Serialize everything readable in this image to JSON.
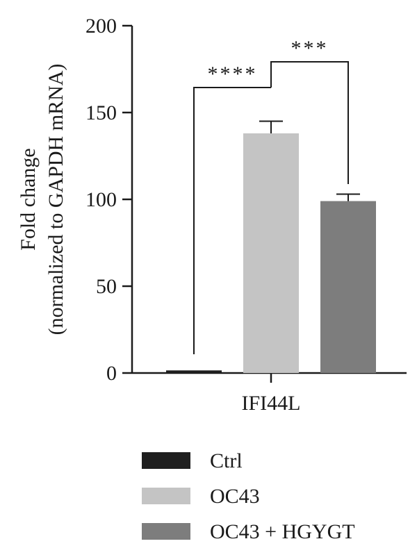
{
  "chart_data": {
    "type": "bar",
    "categories": [
      "IFI44L"
    ],
    "ylabel_line1": "Fold change",
    "ylabel_line2": "(normalized to GAPDH mRNA)",
    "ylim": [
      0,
      200
    ],
    "yticks": [
      0,
      50,
      100,
      150,
      200
    ],
    "grid": false,
    "legend_position": "bottom",
    "series": [
      {
        "name": "Ctrl",
        "values": [
          1.5
        ],
        "error": [
          0
        ],
        "color": "#1f1f1f"
      },
      {
        "name": "OC43",
        "values": [
          138
        ],
        "error": [
          7
        ],
        "color": "#c4c4c4"
      },
      {
        "name": "OC43 + HGYGT",
        "values": [
          99
        ],
        "error": [
          4
        ],
        "color": "#7d7d7d"
      }
    ],
    "significance": [
      {
        "from": 0,
        "to": 1,
        "label": "****"
      },
      {
        "from": 1,
        "to": 2,
        "label": "***"
      }
    ]
  }
}
